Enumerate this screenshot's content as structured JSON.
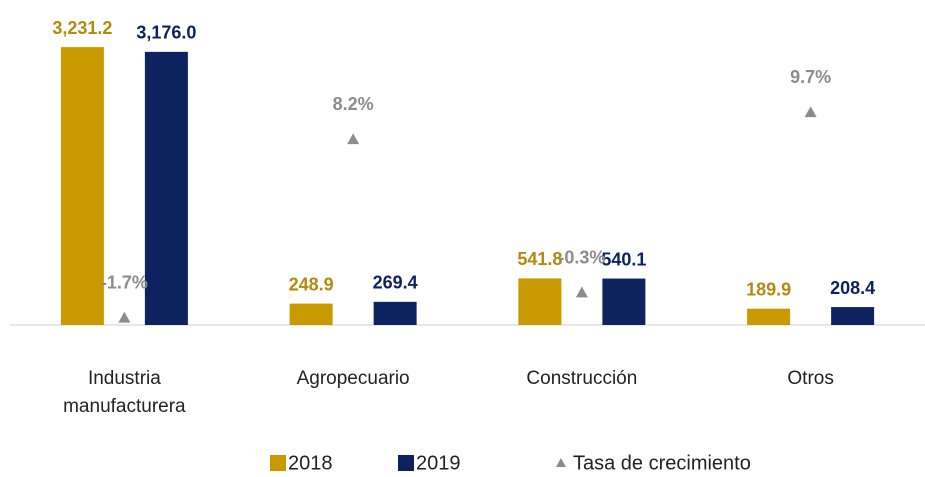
{
  "chart_data": {
    "type": "bar",
    "categories": [
      "Industria manufacturera",
      "Agropecuario",
      "Construcción",
      "Otros"
    ],
    "series": [
      {
        "name": "2018",
        "color": "#c99a00",
        "label_color": "#b38a10",
        "values": [
          3231.2,
          248.9,
          541.8,
          189.9
        ],
        "value_labels": [
          "3,231.2",
          "248.9",
          "541.8",
          "189.9"
        ]
      },
      {
        "name": "2019",
        "color": "#0d2360",
        "label_color": "#0d2360",
        "values": [
          3176.0,
          269.4,
          540.1,
          208.4
        ],
        "value_labels": [
          "3,176.0",
          "269.4",
          "540.1",
          "208.4"
        ]
      },
      {
        "name": "Tasa de crecimiento",
        "type": "scatter",
        "marker": "triangle",
        "axis": "y2",
        "color": "#8c8c8c",
        "label_color": "#8c8c8c",
        "values": [
          -1.7,
          8.2,
          -0.3,
          9.7
        ],
        "value_labels": [
          "-1.7%",
          "8.2%",
          "-0.3%",
          "9.7%"
        ]
      }
    ],
    "ylim": [
      0,
      3500
    ],
    "y2lim": [
      -2.1,
      14.6
    ],
    "grid": false,
    "legend": "bottom"
  }
}
